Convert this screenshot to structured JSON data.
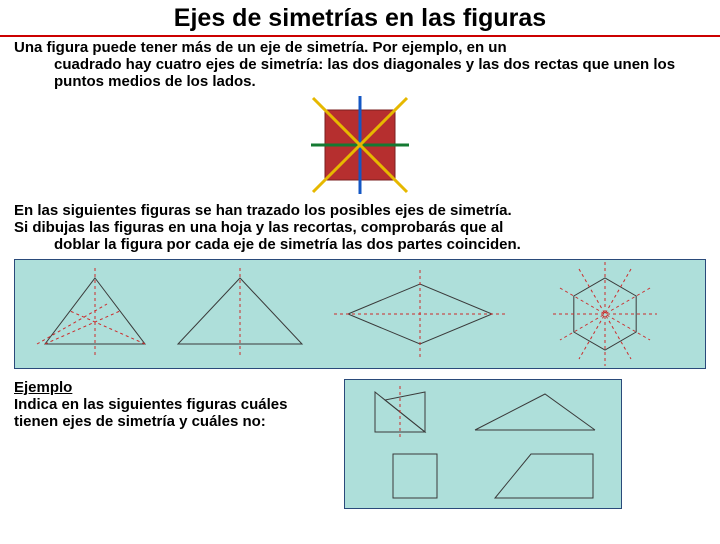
{
  "title": "Ejes de simetrías en las figuras",
  "para1_line1": "Una figura puede tener más de un eje de simetría. Por ejemplo, en un",
  "para1_rest": "cuadrado hay cuatro ejes de simetría: las dos diagonales y las dos rectas que unen los puntos medios de los lados.",
  "para2_line1": "En las siguientes figuras se han trazado los posibles ejes de simetría.",
  "para2_line2": "Si dibujas las figuras en una hoja y las recortas, comprobarás que al",
  "para2_rest": "doblar la figura por cada eje de simetría las dos partes coinciden.",
  "ejemplo_label": "Ejemplo",
  "ejemplo_text": "Indica en las siguientes figuras cuáles tienen ejes de simetría y cuáles no:",
  "square": {
    "size": 70,
    "pad": 14,
    "square_fill": "#b62f2f",
    "square_stroke": "#7a1f1f",
    "axis_horiz": "#147a32",
    "axis_vert": "#1457c4",
    "axis_diag1": "#e6b800",
    "axis_diag2": "#e6b800",
    "axis_width": 3
  },
  "strip": {
    "bg": "#aedfda",
    "border": "#2a4a7a",
    "shape_stroke": "#3a3a3a",
    "shape_width": 1,
    "axis_stroke": "#cc2b2b",
    "axis_width": 1,
    "axis_dash": "3,3",
    "figures": [
      {
        "type": "triangle-equilateral"
      },
      {
        "type": "triangle-isoceles"
      },
      {
        "type": "rhombus"
      },
      {
        "type": "hexagon"
      }
    ]
  },
  "ejemplo_figs": {
    "bg": "#aedfda",
    "border": "#2a4a7a",
    "shape_stroke": "#3a3a3a",
    "shape_width": 1,
    "axis_stroke": "#cc2b2b",
    "axis_dash": "3,3",
    "figures": [
      {
        "type": "bowtie"
      },
      {
        "type": "scalene"
      },
      {
        "type": "square"
      },
      {
        "type": "right-trapezoid"
      }
    ]
  }
}
